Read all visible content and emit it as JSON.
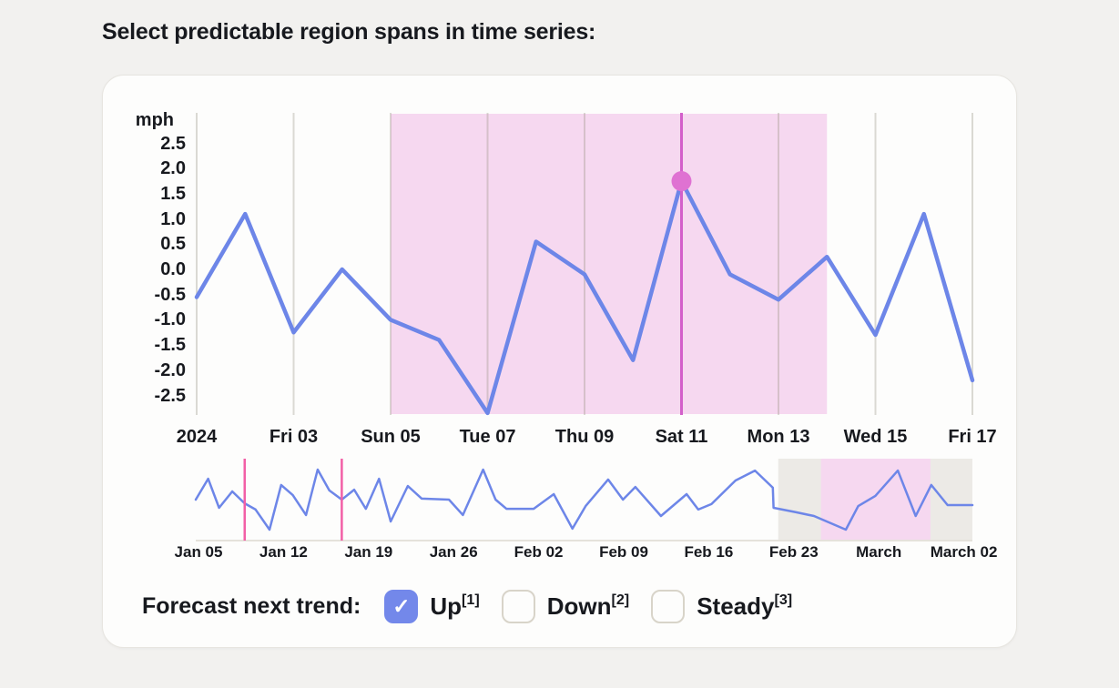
{
  "page": {
    "title": "Select predictable region spans in time series:"
  },
  "chart_data": [
    {
      "type": "line",
      "name": "detail-time-series",
      "unit_label": "mph",
      "y_tick_labels": [
        "2.5",
        "2.0",
        "1.5",
        "1.0",
        "0.5",
        "0.0",
        "-0.5",
        "-1.0",
        "-1.5",
        "-2.0",
        "-2.5"
      ],
      "ylim": [
        -2.9,
        3.1
      ],
      "grid": true,
      "x_tick_labels": [
        "2024",
        "Fri 03",
        "Sun 05",
        "Tue 07",
        "Thu 09",
        "Sat 11",
        "Mon 13",
        "Wed 15",
        "Fri 17"
      ],
      "points_per_tick": 2,
      "values": [
        -0.55,
        1.1,
        -1.25,
        0.0,
        -1.0,
        -1.4,
        -2.85,
        0.55,
        -0.1,
        -1.8,
        1.75,
        -0.1,
        -0.6,
        0.25,
        -1.3,
        1.1,
        -2.2
      ],
      "highlight_region": {
        "start_index": 4,
        "end_index": 13
      },
      "selected_point": {
        "index": 10,
        "value": 1.75
      }
    },
    {
      "type": "line",
      "name": "overview-time-series",
      "x_tick_labels": [
        "Jan 05",
        "Jan 12",
        "Jan 19",
        "Jan 26",
        "Feb 02",
        "Feb 09",
        "Feb 16",
        "Feb 23",
        "March",
        "March 02"
      ],
      "points": [
        [
          0.0,
          0.0
        ],
        [
          0.016,
          1.53
        ],
        [
          0.03,
          -0.6
        ],
        [
          0.047,
          0.6
        ],
        [
          0.063,
          -0.27
        ],
        [
          0.077,
          -0.73
        ],
        [
          0.095,
          -2.2
        ],
        [
          0.11,
          1.07
        ],
        [
          0.125,
          0.33
        ],
        [
          0.142,
          -1.13
        ],
        [
          0.157,
          2.2
        ],
        [
          0.172,
          0.67
        ],
        [
          0.188,
          0.0
        ],
        [
          0.204,
          0.73
        ],
        [
          0.219,
          -0.67
        ],
        [
          0.236,
          1.53
        ],
        [
          0.251,
          -1.6
        ],
        [
          0.273,
          1.0
        ],
        [
          0.291,
          0.07
        ],
        [
          0.326,
          0.0
        ],
        [
          0.344,
          -1.13
        ],
        [
          0.37,
          2.2
        ],
        [
          0.386,
          0.0
        ],
        [
          0.4,
          -0.67
        ],
        [
          0.435,
          -0.67
        ],
        [
          0.461,
          0.4
        ],
        [
          0.485,
          -2.13
        ],
        [
          0.502,
          -0.47
        ],
        [
          0.531,
          1.47
        ],
        [
          0.55,
          0.0
        ],
        [
          0.566,
          0.93
        ],
        [
          0.599,
          -1.2
        ],
        [
          0.632,
          0.4
        ],
        [
          0.647,
          -0.73
        ],
        [
          0.664,
          -0.33
        ],
        [
          0.695,
          1.4
        ],
        [
          0.72,
          2.13
        ],
        [
          0.743,
          0.87
        ],
        [
          0.744,
          -0.6
        ],
        [
          0.773,
          -0.93
        ],
        [
          0.796,
          -1.2
        ],
        [
          0.837,
          -2.2
        ],
        [
          0.853,
          -0.47
        ],
        [
          0.875,
          0.27
        ],
        [
          0.904,
          2.13
        ],
        [
          0.927,
          -1.2
        ],
        [
          0.947,
          1.07
        ],
        [
          0.968,
          -0.4
        ],
        [
          1.0,
          -0.4
        ]
      ],
      "brush_lines_x": [
        0.063,
        0.188
      ],
      "gray_band": [
        0.75,
        1.0
      ],
      "pink_band": [
        0.805,
        0.946
      ]
    }
  ],
  "forecast": {
    "label": "Forecast next trend:",
    "options": [
      {
        "label": "Up",
        "sup": "[1]",
        "checked": true
      },
      {
        "label": "Down",
        "sup": "[2]",
        "checked": false
      },
      {
        "label": "Steady",
        "sup": "[3]",
        "checked": false
      }
    ]
  },
  "colors": {
    "line_blue": "#6d86e8",
    "highlight_pink": "#f6d8f0",
    "selected_line_magenta": "#d35fca",
    "selected_dot_pink": "#df72d2",
    "brush_pink": "#f25fa6",
    "forecast_band_gray": "#eceae6",
    "checkbox_checked_blue": "#7388ea",
    "gridline": "#dfdcd4"
  }
}
